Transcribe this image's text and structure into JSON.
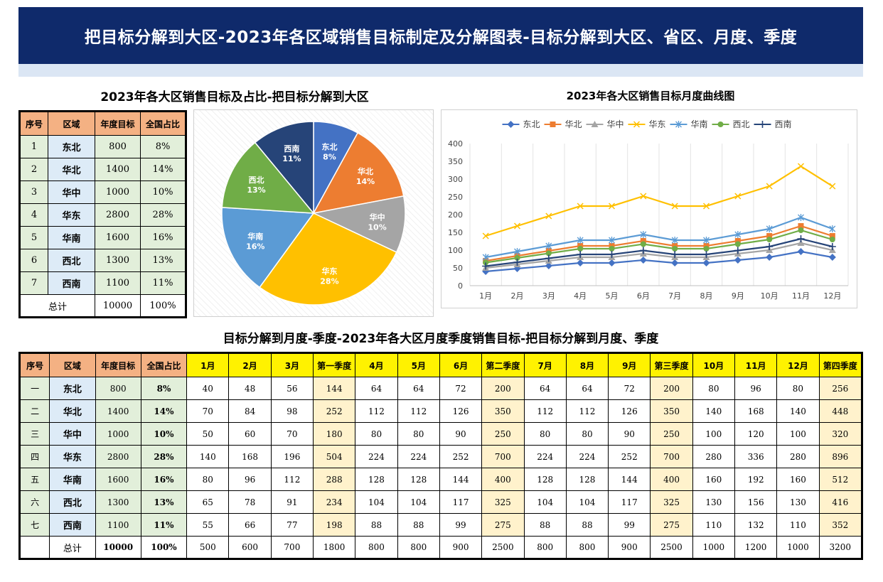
{
  "title": "把目标分解到大区-2023年各区域销售目标制定及分解图表-目标分解到大区、省区、月度、季度",
  "pie_section_title": "2023年各大区销售目标及占比-把目标分解到大区",
  "line_section_title": "2023年各大区销售目标月度曲线图",
  "bottom_section_title": "目标分解到月度-季度-2023年各大区月度季度销售目标-把目标分解到月度、季度",
  "left_table": {
    "headers": [
      "序号",
      "区域",
      "年度目标",
      "全国占比"
    ],
    "rows": [
      {
        "no": "1",
        "region": "东北",
        "target": "800",
        "share": "8%"
      },
      {
        "no": "2",
        "region": "华北",
        "target": "1400",
        "share": "14%"
      },
      {
        "no": "3",
        "region": "华中",
        "target": "1000",
        "share": "10%"
      },
      {
        "no": "4",
        "region": "华东",
        "target": "2800",
        "share": "28%"
      },
      {
        "no": "5",
        "region": "华南",
        "target": "1600",
        "share": "16%"
      },
      {
        "no": "6",
        "region": "西北",
        "target": "1300",
        "share": "13%"
      },
      {
        "no": "7",
        "region": "西南",
        "target": "1100",
        "share": "11%"
      }
    ],
    "total": {
      "label": "总计",
      "target": "10000",
      "share": "100%"
    }
  },
  "big_table": {
    "headers": [
      "序号",
      "区域",
      "年度目标",
      "全国占比",
      "1月",
      "2月",
      "3月",
      "第一季度",
      "4月",
      "5月",
      "6月",
      "第二季度",
      "7月",
      "8月",
      "9月",
      "第三季度",
      "10月",
      "11月",
      "12月",
      "第四季度"
    ],
    "rows": [
      [
        "一",
        "东北",
        "800",
        "8%",
        "40",
        "48",
        "56",
        "144",
        "64",
        "64",
        "72",
        "200",
        "64",
        "64",
        "72",
        "200",
        "80",
        "96",
        "80",
        "256"
      ],
      [
        "二",
        "华北",
        "1400",
        "14%",
        "70",
        "84",
        "98",
        "252",
        "112",
        "112",
        "126",
        "350",
        "112",
        "112",
        "126",
        "350",
        "140",
        "168",
        "140",
        "448"
      ],
      [
        "三",
        "华中",
        "1000",
        "10%",
        "50",
        "60",
        "70",
        "180",
        "80",
        "80",
        "90",
        "250",
        "80",
        "80",
        "90",
        "250",
        "100",
        "120",
        "100",
        "320"
      ],
      [
        "四",
        "华东",
        "2800",
        "28%",
        "140",
        "168",
        "196",
        "504",
        "224",
        "224",
        "252",
        "700",
        "224",
        "224",
        "252",
        "700",
        "280",
        "336",
        "280",
        "896"
      ],
      [
        "五",
        "华南",
        "1600",
        "16%",
        "80",
        "96",
        "112",
        "288",
        "128",
        "128",
        "144",
        "400",
        "128",
        "128",
        "144",
        "400",
        "160",
        "192",
        "160",
        "512"
      ],
      [
        "六",
        "西北",
        "1300",
        "13%",
        "65",
        "78",
        "91",
        "234",
        "104",
        "104",
        "117",
        "325",
        "104",
        "104",
        "117",
        "325",
        "130",
        "156",
        "130",
        "416"
      ],
      [
        "七",
        "西南",
        "1100",
        "11%",
        "55",
        "66",
        "77",
        "198",
        "88",
        "88",
        "99",
        "275",
        "88",
        "88",
        "99",
        "275",
        "110",
        "132",
        "110",
        "352"
      ]
    ],
    "total": [
      "",
      "总计",
      "10000",
      "100%",
      "500",
      "600",
      "700",
      "1800",
      "800",
      "800",
      "900",
      "2500",
      "800",
      "800",
      "900",
      "2500",
      "1000",
      "1200",
      "1000",
      "3200"
    ]
  },
  "chart_data": [
    {
      "type": "pie",
      "title": "",
      "categories": [
        "东北",
        "华北",
        "华中",
        "华东",
        "华南",
        "西北",
        "西南"
      ],
      "values": [
        800,
        1400,
        1000,
        2800,
        1600,
        1300,
        1100
      ],
      "labels": [
        "8%",
        "14%",
        "10%",
        "28%",
        "16%",
        "13%",
        "11%"
      ],
      "colors": [
        "#4472c4",
        "#ed7d31",
        "#a5a5a5",
        "#ffc000",
        "#5b9bd5",
        "#70ad47",
        "#264478"
      ]
    },
    {
      "type": "line",
      "title": "",
      "categories": [
        "1月",
        "2月",
        "3月",
        "4月",
        "5月",
        "6月",
        "7月",
        "8月",
        "9月",
        "10月",
        "11月",
        "12月"
      ],
      "ylim": [
        0,
        400
      ],
      "yticks": [
        0,
        50,
        100,
        150,
        200,
        250,
        300,
        350,
        400
      ],
      "grid": true,
      "legend": "top",
      "series": [
        {
          "name": "东北",
          "color": "#4472c4",
          "marker": "diamond",
          "values": [
            40,
            48,
            56,
            64,
            64,
            72,
            64,
            64,
            72,
            80,
            96,
            80
          ]
        },
        {
          "name": "华北",
          "color": "#ed7d31",
          "marker": "square",
          "values": [
            70,
            84,
            98,
            112,
            112,
            126,
            112,
            112,
            126,
            140,
            168,
            140
          ]
        },
        {
          "name": "华中",
          "color": "#a5a5a5",
          "marker": "triangle",
          "values": [
            50,
            60,
            70,
            80,
            80,
            90,
            80,
            80,
            90,
            100,
            120,
            100
          ]
        },
        {
          "name": "华东",
          "color": "#ffc000",
          "marker": "x",
          "values": [
            140,
            168,
            196,
            224,
            224,
            252,
            224,
            224,
            252,
            280,
            336,
            280
          ]
        },
        {
          "name": "华南",
          "color": "#5b9bd5",
          "marker": "star",
          "values": [
            80,
            96,
            112,
            128,
            128,
            144,
            128,
            128,
            144,
            160,
            192,
            160
          ]
        },
        {
          "name": "西北",
          "color": "#70ad47",
          "marker": "circle",
          "values": [
            65,
            78,
            91,
            104,
            104,
            117,
            104,
            104,
            117,
            130,
            156,
            130
          ]
        },
        {
          "name": "西南",
          "color": "#264478",
          "marker": "plus",
          "values": [
            55,
            66,
            77,
            88,
            88,
            99,
            88,
            88,
            99,
            110,
            132,
            110
          ]
        }
      ]
    }
  ]
}
